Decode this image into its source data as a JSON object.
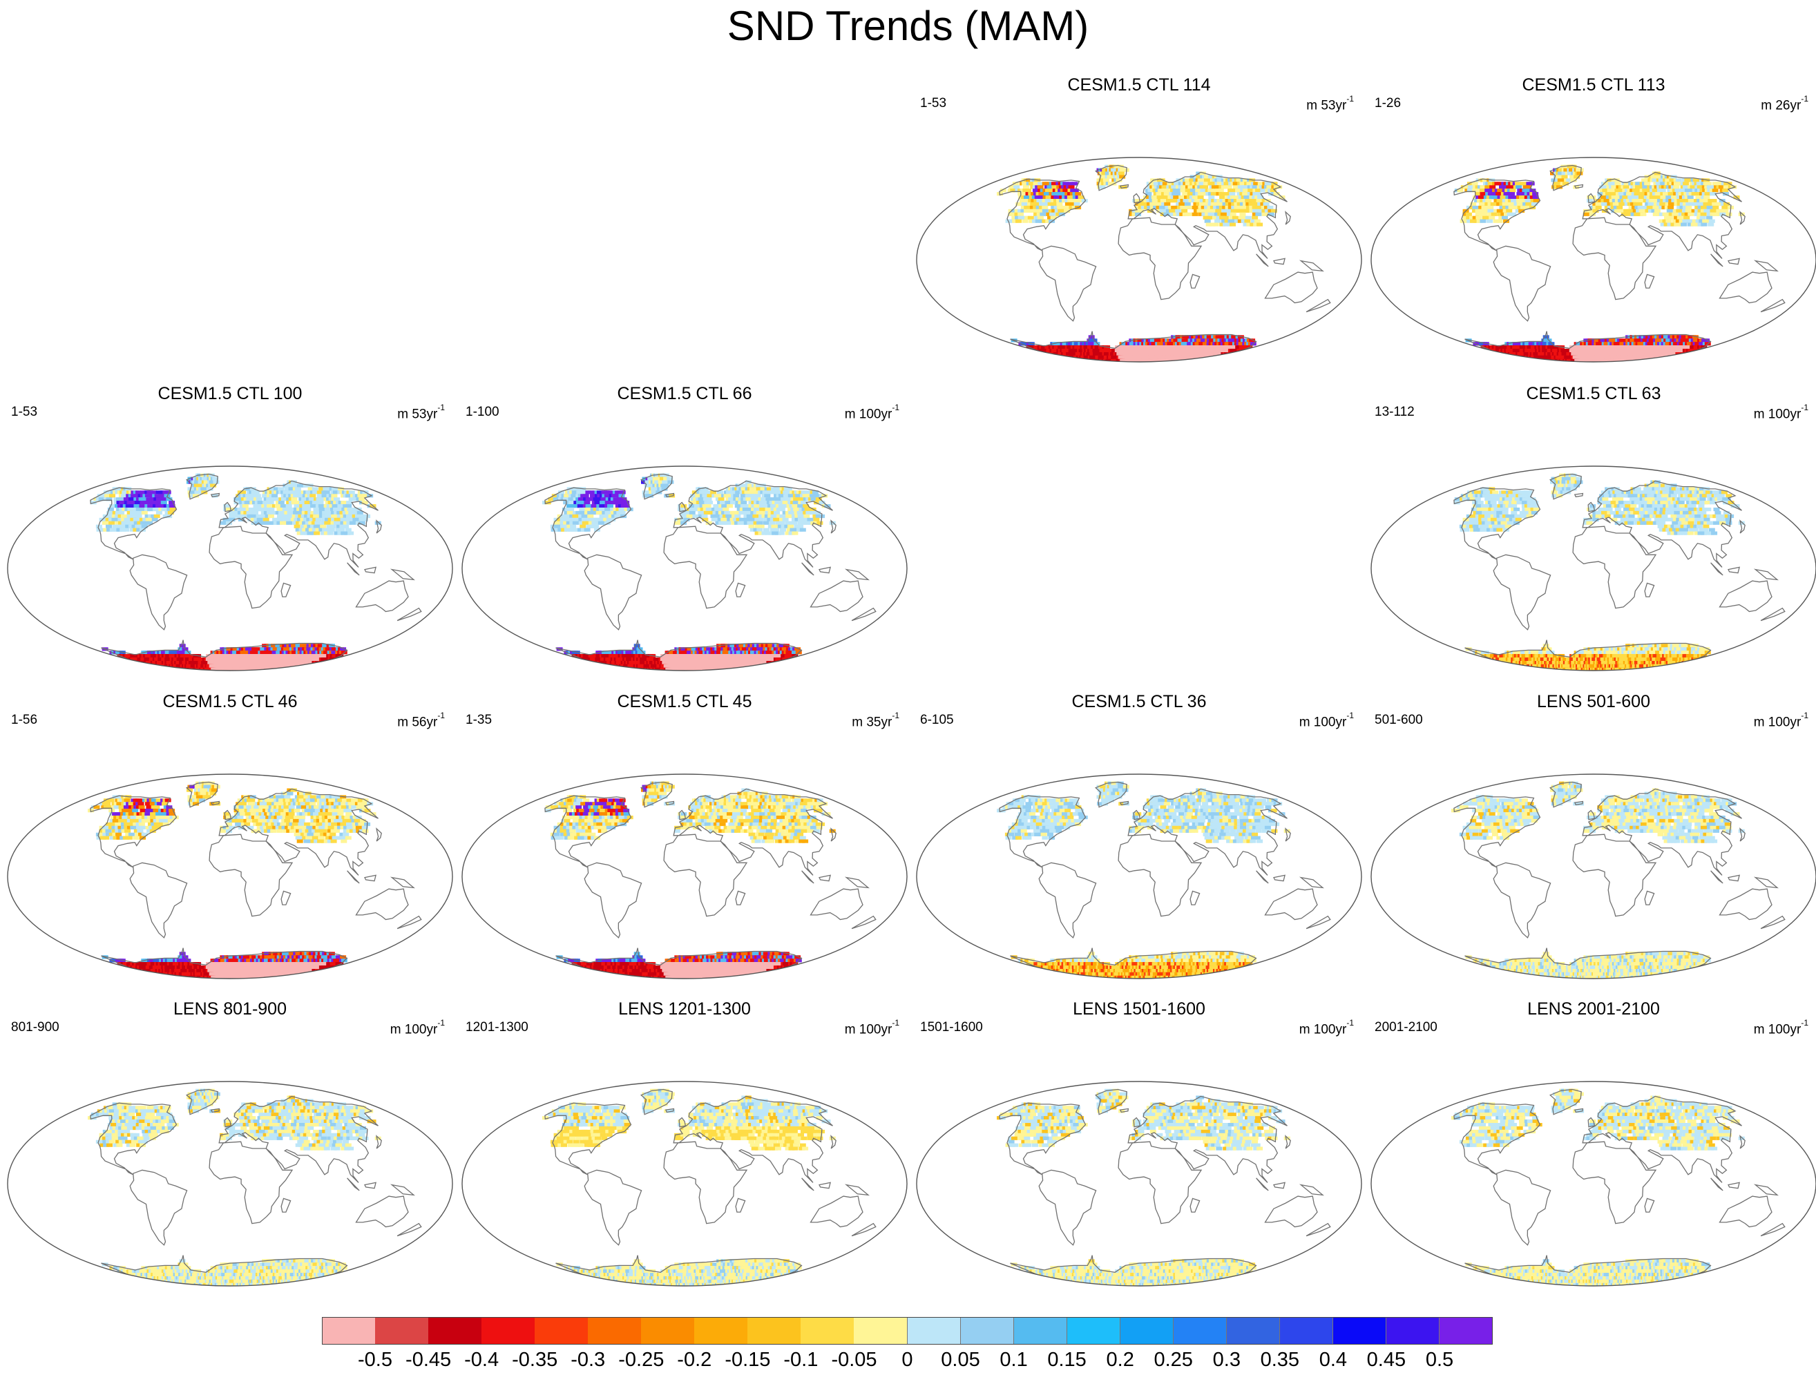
{
  "title": "SND Trends (MAM)",
  "colors": {
    "land_outline": "#707070",
    "frame": "#555555"
  },
  "panels": [
    {
      "id": "ctl114",
      "title": "CESM1.5 CTL 114",
      "range": "1-53",
      "unit_prefix": "m 53yr",
      "unit_exp": "-1",
      "style": "ctl_strong",
      "cell": [
        0,
        2
      ]
    },
    {
      "id": "ctl113",
      "title": "CESM1.5 CTL 113",
      "range": "1-26",
      "unit_prefix": "m 26yr",
      "unit_exp": "-1",
      "style": "ctl_strong",
      "cell": [
        0,
        3
      ]
    },
    {
      "id": "ctl100",
      "title": "CESM1.5 CTL 100",
      "range": "1-53",
      "unit_prefix": "m 53yr",
      "unit_exp": "-1",
      "style": "ctl_purple",
      "cell": [
        1,
        0
      ]
    },
    {
      "id": "ctl66",
      "title": "CESM1.5 CTL 66",
      "range": "1-100",
      "unit_prefix": "m 100yr",
      "unit_exp": "-1",
      "style": "ctl_purple",
      "cell": [
        1,
        1
      ]
    },
    {
      "id": "ctl63",
      "title": "CESM1.5 CTL 63",
      "range": "13-112",
      "unit_prefix": "m 100yr",
      "unit_exp": "-1",
      "style": "ctl_mild",
      "cell": [
        1,
        3
      ]
    },
    {
      "id": "ctl46",
      "title": "CESM1.5 CTL 46",
      "range": "1-56",
      "unit_prefix": "m 56yr",
      "unit_exp": "-1",
      "style": "ctl_strong",
      "cell": [
        2,
        0
      ]
    },
    {
      "id": "ctl45",
      "title": "CESM1.5 CTL 45",
      "range": "1-35",
      "unit_prefix": "m 35yr",
      "unit_exp": "-1",
      "style": "ctl_strong",
      "cell": [
        2,
        1
      ]
    },
    {
      "id": "ctl36",
      "title": "CESM1.5 CTL 36",
      "range": "6-105",
      "unit_prefix": "m 100yr",
      "unit_exp": "-1",
      "style": "ctl_mild",
      "cell": [
        2,
        2
      ]
    },
    {
      "id": "lens501",
      "title": "LENS 501-600",
      "range": "501-600",
      "unit_prefix": "m 100yr",
      "unit_exp": "-1",
      "style": "lens",
      "cell": [
        2,
        3
      ]
    },
    {
      "id": "lens801",
      "title": "LENS 801-900",
      "range": "801-900",
      "unit_prefix": "m 100yr",
      "unit_exp": "-1",
      "style": "lens",
      "cell": [
        3,
        0
      ]
    },
    {
      "id": "lens1201",
      "title": "LENS 1201-1300",
      "range": "1201-1300",
      "unit_prefix": "m 100yr",
      "unit_exp": "-1",
      "style": "lens_warm",
      "cell": [
        3,
        1
      ]
    },
    {
      "id": "lens1501",
      "title": "LENS 1501-1600",
      "range": "1501-1600",
      "unit_prefix": "m 100yr",
      "unit_exp": "-1",
      "style": "lens",
      "cell": [
        3,
        2
      ]
    },
    {
      "id": "lens2001",
      "title": "LENS 2001-2100",
      "range": "2001-2100",
      "unit_prefix": "m 100yr",
      "unit_exp": "-1",
      "style": "lens",
      "cell": [
        3,
        3
      ]
    }
  ],
  "colorbar": {
    "colors": [
      "#f9b4b4",
      "#dc4545",
      "#c8000f",
      "#ee1010",
      "#fa3c0a",
      "#fa6a00",
      "#fa8c00",
      "#fcab08",
      "#fcc31e",
      "#fedc46",
      "#fff596",
      "#bde6f8",
      "#95cff2",
      "#55bbf0",
      "#1ebefa",
      "#12a0f5",
      "#2382f5",
      "#3264e1",
      "#2d46ec",
      "#0a0af8",
      "#3c14f0",
      "#7820e8"
    ],
    "labels": [
      "-0.5",
      "-0.45",
      "-0.4",
      "-0.35",
      "-0.3",
      "-0.25",
      "-0.2",
      "-0.15",
      "-0.1",
      "-0.05",
      "0",
      "0.05",
      "0.1",
      "0.15",
      "0.2",
      "0.25",
      "0.3",
      "0.35",
      "0.4",
      "0.45",
      "0.5"
    ]
  }
}
